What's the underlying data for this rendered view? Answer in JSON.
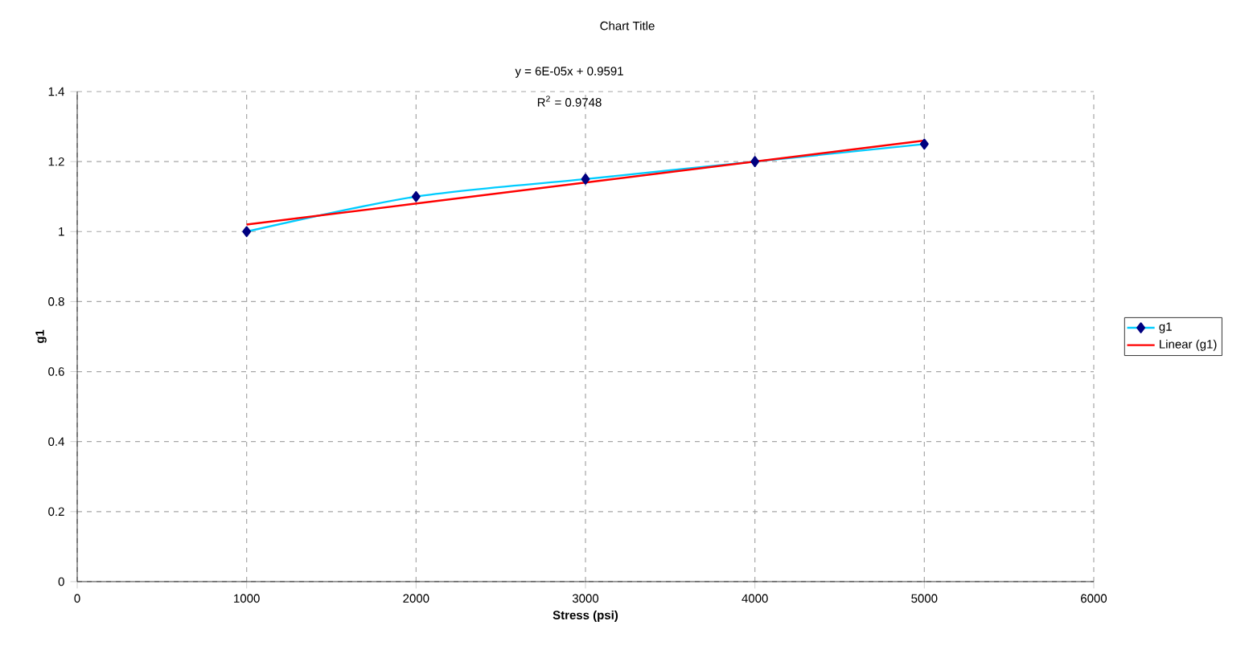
{
  "chart_data": {
    "type": "line",
    "title": "Chart Title",
    "xlabel": "Stress (psi)",
    "ylabel": "g1",
    "annotations": [
      "y = 6E-05x + 0.9591",
      "R$^{2}$ = 0.9748"
    ],
    "series": [
      {
        "name": "g1",
        "color": "#00ccff",
        "x": [
          1000,
          2000,
          3000,
          4000,
          5000
        ],
        "values": [
          1.0,
          1.1,
          1.15,
          1.2,
          1.25
        ],
        "marker": "diamond"
      },
      {
        "name": "Linear (g1)",
        "color": "#ff0000",
        "type": "line",
        "x": [
          1000,
          5000
        ],
        "values": [
          1.02,
          1.26
        ],
        "marker": "none"
      }
    ],
    "xlim": [
      0,
      6000
    ],
    "xticks": [
      0,
      1000,
      2000,
      3000,
      4000,
      5000,
      6000
    ],
    "ylim": [
      0,
      1.4
    ],
    "yticks": [
      0,
      0.2,
      0.4,
      0.6,
      0.8,
      1,
      1.2,
      1.4
    ],
    "grid": true,
    "legend": "right",
    "line_style": "solid"
  }
}
